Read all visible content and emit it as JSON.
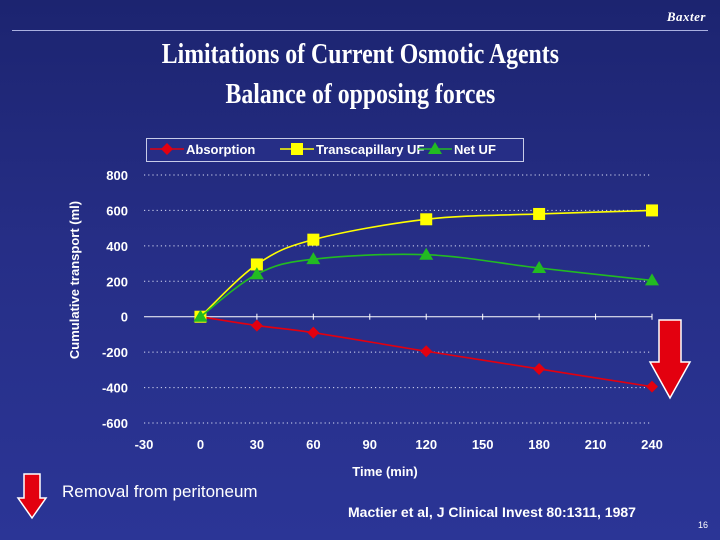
{
  "brand": "Baxter",
  "title_line1": "Limitations of Current Osmotic Agents",
  "title_line2": "Balance of opposing forces",
  "footer_label": "Removal from peritoneum",
  "citation": "Mactier et al, J Clinical Invest 80:1311, 1987",
  "page_number": "16",
  "chart_data": {
    "type": "line",
    "xlabel": "Time (min)",
    "ylabel": "Cumulative transport (ml)",
    "xlim": [
      -30,
      240
    ],
    "ylim": [
      -600,
      800
    ],
    "xticks": [
      -30,
      0,
      30,
      60,
      90,
      120,
      150,
      180,
      210,
      240
    ],
    "yticks": [
      800,
      600,
      400,
      200,
      0,
      -200,
      -400,
      -600
    ],
    "grid": true,
    "legend": "top",
    "series": [
      {
        "name": "Absorption",
        "color": "#e3000f",
        "marker": "diamond",
        "x": [
          0,
          30,
          60,
          120,
          180,
          240
        ],
        "y": [
          0,
          -50,
          -90,
          -195,
          -295,
          -395
        ]
      },
      {
        "name": "Transcapillary UF",
        "color": "#ffff00",
        "marker": "square",
        "x": [
          0,
          30,
          60,
          120,
          180,
          240
        ],
        "y": [
          0,
          295,
          435,
          550,
          580,
          600
        ]
      },
      {
        "name": "Net UF",
        "color": "#22bb22",
        "marker": "triangle",
        "x": [
          0,
          30,
          60,
          120,
          180,
          240
        ],
        "y": [
          0,
          240,
          325,
          350,
          275,
          205
        ]
      }
    ]
  }
}
